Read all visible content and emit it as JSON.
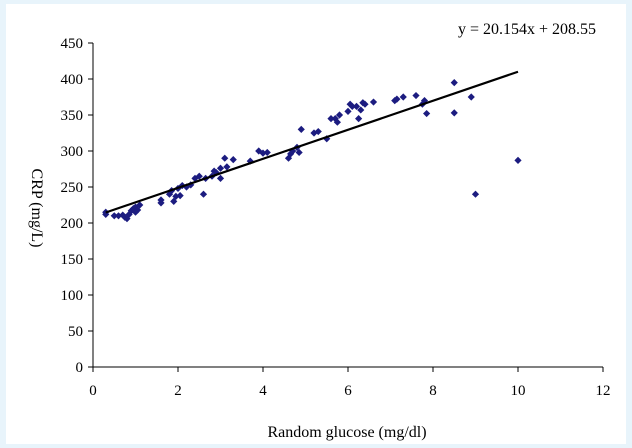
{
  "chart_data": {
    "type": "scatter",
    "xlabel": "Random glucose (mg/dl)",
    "ylabel": "CRP (mg/L)",
    "xlim": [
      0,
      12
    ],
    "ylim": [
      0,
      450
    ],
    "xticks": [
      0,
      2,
      4,
      6,
      8,
      10,
      12
    ],
    "yticks": [
      0,
      50,
      100,
      150,
      200,
      250,
      300,
      350,
      400,
      450
    ],
    "grid": false,
    "legend": "none",
    "marker": "diamond",
    "point_color": "#1c1c80",
    "trendline": {
      "equation": "y = 20.154x + 208.55",
      "slope": 20.154,
      "intercept": 208.55,
      "x_range": [
        0.3,
        10.0
      ]
    },
    "points": [
      [
        0.3,
        215
      ],
      [
        0.3,
        212
      ],
      [
        0.5,
        210
      ],
      [
        0.6,
        210
      ],
      [
        0.7,
        211
      ],
      [
        0.75,
        208
      ],
      [
        0.8,
        206
      ],
      [
        0.85,
        212
      ],
      [
        0.9,
        217
      ],
      [
        0.95,
        220
      ],
      [
        1.0,
        215
      ],
      [
        1.0,
        222
      ],
      [
        1.05,
        218
      ],
      [
        1.1,
        225
      ],
      [
        1.6,
        228
      ],
      [
        1.6,
        232
      ],
      [
        1.8,
        240
      ],
      [
        1.85,
        245
      ],
      [
        1.9,
        230
      ],
      [
        1.95,
        237
      ],
      [
        2.0,
        248
      ],
      [
        2.05,
        238
      ],
      [
        2.1,
        252
      ],
      [
        2.2,
        250
      ],
      [
        2.3,
        253
      ],
      [
        2.4,
        262
      ],
      [
        2.5,
        265
      ],
      [
        2.6,
        240
      ],
      [
        2.65,
        262
      ],
      [
        2.8,
        265
      ],
      [
        2.85,
        272
      ],
      [
        2.9,
        270
      ],
      [
        3.0,
        276
      ],
      [
        3.0,
        262
      ],
      [
        3.1,
        290
      ],
      [
        3.15,
        278
      ],
      [
        3.3,
        288
      ],
      [
        3.7,
        286
      ],
      [
        3.9,
        300
      ],
      [
        4.0,
        297
      ],
      [
        4.1,
        298
      ],
      [
        4.6,
        290
      ],
      [
        4.65,
        296
      ],
      [
        4.7,
        300
      ],
      [
        4.8,
        305
      ],
      [
        4.85,
        298
      ],
      [
        4.9,
        330
      ],
      [
        5.2,
        325
      ],
      [
        5.3,
        327
      ],
      [
        5.5,
        317
      ],
      [
        5.6,
        345
      ],
      [
        5.7,
        345
      ],
      [
        5.75,
        340
      ],
      [
        5.8,
        350
      ],
      [
        6.0,
        355
      ],
      [
        6.05,
        365
      ],
      [
        6.1,
        362
      ],
      [
        6.2,
        362
      ],
      [
        6.25,
        345
      ],
      [
        6.3,
        357
      ],
      [
        6.35,
        367
      ],
      [
        6.4,
        365
      ],
      [
        6.6,
        368
      ],
      [
        7.1,
        370
      ],
      [
        7.15,
        372
      ],
      [
        7.3,
        375
      ],
      [
        7.6,
        377
      ],
      [
        7.75,
        365
      ],
      [
        7.8,
        370
      ],
      [
        7.85,
        352
      ],
      [
        8.5,
        395
      ],
      [
        8.5,
        353
      ],
      [
        8.9,
        375
      ],
      [
        9.0,
        240
      ],
      [
        10.0,
        287
      ]
    ]
  }
}
